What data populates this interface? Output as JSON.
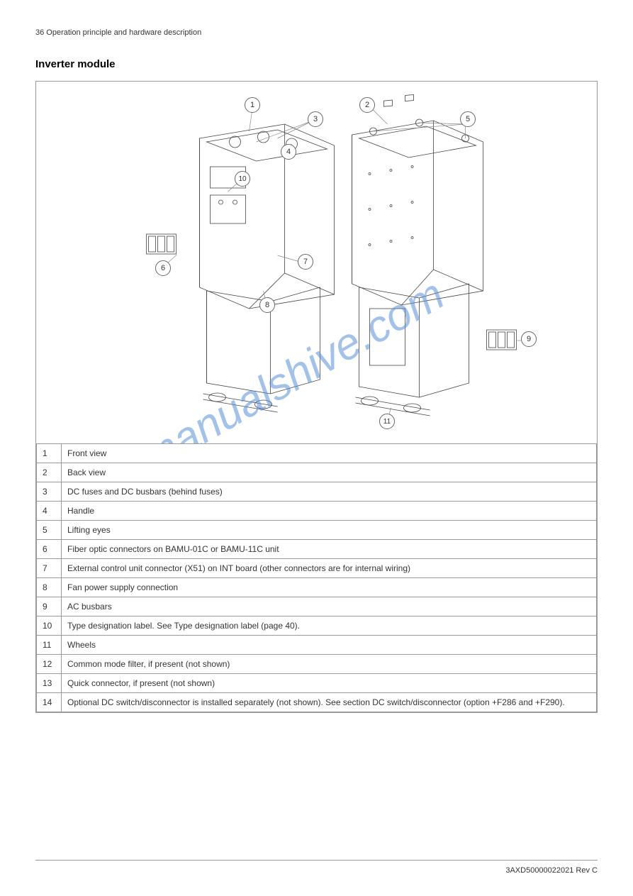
{
  "header": "36 Operation principle and hardware description",
  "title": "Inverter module",
  "watermark": "manualshive.com",
  "callouts": {
    "c1": "1",
    "c2": "2",
    "c3": "3",
    "c4": "4",
    "c5": "5",
    "c6": "6",
    "c7": "7",
    "c8": "8",
    "c9": "9",
    "c10": "10"
  },
  "legend": [
    {
      "num": "1",
      "desc": "Front view"
    },
    {
      "num": "2",
      "desc": "Back view"
    },
    {
      "num": "3",
      "desc": "DC fuses and DC busbars (behind fuses)"
    },
    {
      "num": "4",
      "desc": "Handle"
    },
    {
      "num": "5",
      "desc": "Lifting eyes"
    },
    {
      "num": "6",
      "desc": "Fiber optic connectors on BAMU-01C or BAMU-11C unit"
    },
    {
      "num": "7",
      "desc": "External control unit connector (X51) on INT board (other connectors are for internal wiring)"
    },
    {
      "num": "8",
      "desc": "Fan power supply connection"
    },
    {
      "num": "9",
      "desc": "AC busbars"
    },
    {
      "num": "10",
      "desc": "Type designation label. See Type designation label (page 40)."
    },
    {
      "num": "11",
      "desc": "Wheels"
    },
    {
      "num": "12",
      "desc": "Common mode filter, if present (not shown)"
    },
    {
      "num": "13",
      "desc": "Quick connector, if present (not shown)"
    },
    {
      "num": "14",
      "desc": "Optional DC switch/disconnector is installed separately (not shown). See section DC switch/disconnector (option +F286 and +F290)."
    }
  ],
  "footer": "3AXD50000022021 Rev C",
  "colors": {
    "border": "#999999",
    "text": "#333333",
    "watermark": "#5b8fd6",
    "background": "#ffffff",
    "diagramLine": "#444444"
  }
}
